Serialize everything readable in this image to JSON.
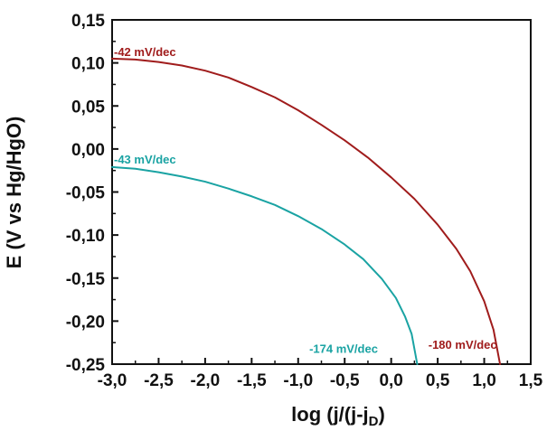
{
  "chart_data": {
    "type": "line",
    "xlabel_main": "log (j/(j-j",
    "xlabel_sub": "D",
    "xlabel_close": ")",
    "ylabel": "E (V vs Hg/HgO)",
    "xlim": [
      -3.0,
      1.5
    ],
    "ylim": [
      -0.25,
      0.15
    ],
    "x_ticks": [
      -3.0,
      -2.5,
      -2.0,
      -1.5,
      -1.0,
      -0.5,
      0.0,
      0.5,
      1.0,
      1.5
    ],
    "x_tick_labels": [
      "-3,0",
      "-2,5",
      "-2,0",
      "-1,5",
      "-1,0",
      "-0,5",
      "0,0",
      "0,5",
      "1,0",
      "1,5"
    ],
    "y_ticks": [
      0.15,
      0.1,
      0.05,
      0.0,
      -0.05,
      -0.1,
      -0.15,
      -0.2,
      -0.25
    ],
    "y_tick_labels": [
      "0,15",
      "0,10",
      "0,05",
      "0,00",
      "-0,05",
      "-0,10",
      "-0,15",
      "-0,20",
      "-0,25"
    ],
    "grid": false,
    "series": [
      {
        "color": "#a01c1c",
        "x": [
          -3.0,
          -2.75,
          -2.5,
          -2.25,
          -2.0,
          -1.75,
          -1.5,
          -1.25,
          -1.0,
          -0.75,
          -0.5,
          -0.25,
          0.0,
          0.25,
          0.5,
          0.7,
          0.85,
          1.0,
          1.1,
          1.17
        ],
        "y": [
          0.105,
          0.104,
          0.101,
          0.097,
          0.091,
          0.083,
          0.072,
          0.06,
          0.045,
          0.028,
          0.01,
          -0.01,
          -0.033,
          -0.058,
          -0.088,
          -0.116,
          -0.142,
          -0.177,
          -0.21,
          -0.25
        ]
      },
      {
        "color": "#1aa3a3",
        "x": [
          -3.0,
          -2.75,
          -2.5,
          -2.25,
          -2.0,
          -1.75,
          -1.5,
          -1.25,
          -1.0,
          -0.75,
          -0.5,
          -0.3,
          -0.1,
          0.05,
          0.15,
          0.22,
          0.28
        ],
        "y": [
          -0.021,
          -0.023,
          -0.027,
          -0.032,
          -0.038,
          -0.046,
          -0.055,
          -0.065,
          -0.078,
          -0.093,
          -0.111,
          -0.128,
          -0.151,
          -0.173,
          -0.195,
          -0.215,
          -0.25
        ]
      }
    ],
    "annotations": [
      {
        "text": "-42 mV/dec",
        "x": -3.0,
        "y": 0.108,
        "color": "#a01c1c"
      },
      {
        "text": "-43 mV/dec",
        "x": -3.0,
        "y": -0.017,
        "color": "#1aa3a3"
      },
      {
        "text": "-174 mV/dec",
        "x": -0.9,
        "y": -0.237,
        "color": "#1aa3a3"
      },
      {
        "text": "-180 mV/dec",
        "x": 0.38,
        "y": -0.232,
        "color": "#a01c1c"
      }
    ]
  }
}
